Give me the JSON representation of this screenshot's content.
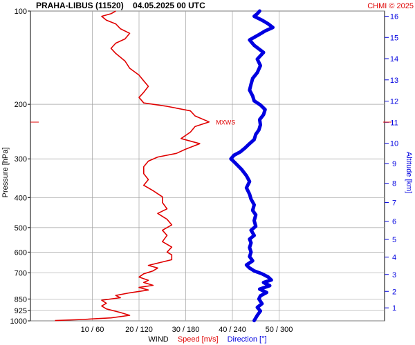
{
  "chart_data": {
    "type": "line",
    "title": "PRAHA-LIBUS (11520)    04.05.2025 00 UTC",
    "credit": "CHMI © 2025",
    "y_axis_left": {
      "label": "Pressure [hPa]",
      "scale": "log",
      "range": [
        1000,
        100
      ],
      "ticks": [
        100,
        200,
        300,
        400,
        500,
        600,
        700,
        850,
        925,
        1000
      ]
    },
    "y_axis_right": {
      "label": "Altitude [km]",
      "ticks": [
        1,
        2,
        3,
        4,
        5,
        6,
        7,
        8,
        9,
        10,
        11,
        12,
        13,
        14,
        15,
        16
      ]
    },
    "x_axis": {
      "tick_labels": [
        "10 / 60",
        "20 / 120",
        "30 / 180",
        "40 / 240",
        "50 / 300"
      ],
      "label_prefix": "WIND",
      "label_speed": "Speed [m/s]",
      "label_direction": "Direction [°]"
    },
    "annotation": "MXWS",
    "colors": {
      "speed": "#e00000",
      "direction": "#0000e0",
      "grid": "#a0a0a0"
    },
    "grid": true,
    "series": [
      {
        "name": "Speed [m/s]",
        "x_unit": "m/s",
        "points": [
          [
            2,
            998
          ],
          [
            8,
            990
          ],
          [
            14,
            978
          ],
          [
            18,
            960
          ],
          [
            16,
            940
          ],
          [
            13,
            915
          ],
          [
            12,
            895
          ],
          [
            13,
            878
          ],
          [
            12,
            858
          ],
          [
            16,
            842
          ],
          [
            15,
            828
          ],
          [
            18,
            812
          ],
          [
            22,
            795
          ],
          [
            20,
            780
          ],
          [
            23,
            768
          ],
          [
            21,
            752
          ],
          [
            22,
            740
          ],
          [
            20,
            722
          ],
          [
            21,
            705
          ],
          [
            23,
            690
          ],
          [
            24,
            675
          ],
          [
            22,
            662
          ],
          [
            27,
            635
          ],
          [
            27,
            612
          ],
          [
            26,
            600
          ],
          [
            27,
            578
          ],
          [
            25,
            555
          ],
          [
            26,
            530
          ],
          [
            25,
            510
          ],
          [
            27,
            490
          ],
          [
            26,
            470
          ],
          [
            24,
            450
          ],
          [
            26,
            435
          ],
          [
            25,
            415
          ],
          [
            25,
            398
          ],
          [
            23,
            380
          ],
          [
            21,
            365
          ],
          [
            22,
            350
          ],
          [
            21,
            335
          ],
          [
            21,
            318
          ],
          [
            22,
            305
          ],
          [
            24,
            296
          ],
          [
            28,
            288
          ],
          [
            30,
            279
          ],
          [
            33,
            268
          ],
          [
            29,
            258
          ],
          [
            31,
            246
          ],
          [
            32,
            236
          ],
          [
            35,
            228
          ],
          [
            32,
            218
          ],
          [
            31,
            210
          ],
          [
            26,
            203
          ],
          [
            21,
            198
          ],
          [
            20,
            190
          ],
          [
            21,
            183
          ],
          [
            22,
            175
          ],
          [
            21,
            168
          ],
          [
            20,
            161
          ],
          [
            18,
            153
          ],
          [
            17,
            145
          ],
          [
            15,
            137
          ],
          [
            14,
            132
          ],
          [
            15,
            127
          ],
          [
            17,
            123
          ],
          [
            18,
            118
          ],
          [
            16,
            114
          ],
          [
            15,
            110
          ],
          [
            13,
            107
          ],
          [
            12,
            104
          ],
          [
            14,
            102
          ],
          [
            15,
            100
          ]
        ]
      },
      {
        "name": "Direction [°]",
        "x_unit": "deg",
        "points": [
          [
            268,
            998
          ],
          [
            272,
            960
          ],
          [
            276,
            930
          ],
          [
            272,
            905
          ],
          [
            278,
            880
          ],
          [
            274,
            850
          ],
          [
            276,
            830
          ],
          [
            284,
            810
          ],
          [
            275,
            790
          ],
          [
            288,
            770
          ],
          [
            280,
            752
          ],
          [
            290,
            738
          ],
          [
            286,
            722
          ],
          [
            278,
            705
          ],
          [
            268,
            690
          ],
          [
            262,
            675
          ],
          [
            258,
            660
          ],
          [
            266,
            640
          ],
          [
            262,
            620
          ],
          [
            264,
            600
          ],
          [
            262,
            580
          ],
          [
            264,
            560
          ],
          [
            262,
            545
          ],
          [
            268,
            530
          ],
          [
            264,
            510
          ],
          [
            270,
            495
          ],
          [
            268,
            475
          ],
          [
            270,
            455
          ],
          [
            266,
            440
          ],
          [
            268,
            422
          ],
          [
            264,
            405
          ],
          [
            262,
            390
          ],
          [
            258,
            372
          ],
          [
            262,
            355
          ],
          [
            258,
            340
          ],
          [
            252,
            325
          ],
          [
            244,
            310
          ],
          [
            238,
            300
          ],
          [
            242,
            292
          ],
          [
            250,
            285
          ],
          [
            256,
            277
          ],
          [
            262,
            268
          ],
          [
            268,
            260
          ],
          [
            270,
            250
          ],
          [
            274,
            242
          ],
          [
            276,
            233
          ],
          [
            275,
            224
          ],
          [
            280,
            216
          ],
          [
            282,
            208
          ],
          [
            276,
            201
          ],
          [
            268,
            195
          ],
          [
            266,
            188
          ],
          [
            262,
            180
          ],
          [
            264,
            172
          ],
          [
            266,
            165
          ],
          [
            272,
            158
          ],
          [
            276,
            150
          ],
          [
            272,
            143
          ],
          [
            280,
            136
          ],
          [
            268,
            129
          ],
          [
            262,
            124
          ],
          [
            272,
            120
          ],
          [
            282,
            116
          ],
          [
            292,
            113
          ],
          [
            286,
            110
          ],
          [
            278,
            107
          ],
          [
            268,
            104
          ],
          [
            272,
            102
          ],
          [
            275,
            100
          ]
        ]
      }
    ]
  }
}
